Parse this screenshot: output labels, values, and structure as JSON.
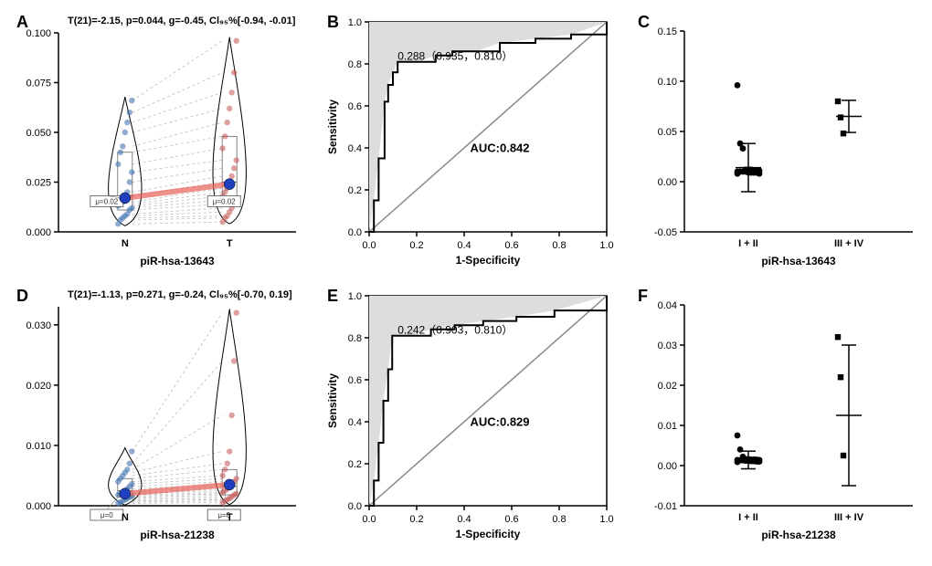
{
  "panelA": {
    "label": "A",
    "title": "T(21)=-2.15, p=0.044, g=-0.45, Cl₉₅%[-0.94, -0.01]",
    "xlabel": "piR-hsa-13643",
    "yticks": [
      0.0,
      0.025,
      0.05,
      0.075,
      0.1
    ],
    "ylim": [
      0,
      0.1
    ],
    "groups": [
      "N",
      "T"
    ],
    "mu": [
      0.02,
      0.02
    ],
    "meanN": 0.017,
    "meanT": 0.024,
    "pointsN": [
      0.004,
      0.006,
      0.007,
      0.008,
      0.009,
      0.011,
      0.012,
      0.013,
      0.014,
      0.015,
      0.018,
      0.02,
      0.025,
      0.03,
      0.034,
      0.04,
      0.043,
      0.05,
      0.055,
      0.06,
      0.066
    ],
    "pointsT": [
      0.005,
      0.007,
      0.008,
      0.01,
      0.012,
      0.014,
      0.016,
      0.018,
      0.02,
      0.022,
      0.025,
      0.028,
      0.032,
      0.036,
      0.042,
      0.048,
      0.055,
      0.062,
      0.07,
      0.08,
      0.096
    ]
  },
  "panelB": {
    "label": "B",
    "xlabel": "1-Specificity",
    "ylabel": "Sensitivity",
    "ticks": [
      0.0,
      0.2,
      0.4,
      0.6,
      0.8,
      1.0
    ],
    "auc": "AUC:0.842",
    "optimal": "0.288（0.935，0.810）",
    "roc": [
      [
        0,
        0
      ],
      [
        0.02,
        0.15
      ],
      [
        0.04,
        0.35
      ],
      [
        0.065,
        0.62
      ],
      [
        0.08,
        0.7
      ],
      [
        0.1,
        0.76
      ],
      [
        0.12,
        0.81
      ],
      [
        0.2,
        0.81
      ],
      [
        0.28,
        0.84
      ],
      [
        0.35,
        0.86
      ],
      [
        0.45,
        0.86
      ],
      [
        0.55,
        0.9
      ],
      [
        0.7,
        0.92
      ],
      [
        0.85,
        0.94
      ],
      [
        1.0,
        1.0
      ]
    ]
  },
  "panelC": {
    "label": "C",
    "xlabel": "piR-hsa-13643",
    "groups": [
      "I + II",
      "III + IV"
    ],
    "yticks": [
      -0.05,
      0.0,
      0.05,
      0.1,
      0.15
    ],
    "ylim": [
      -0.05,
      0.15
    ],
    "g1": {
      "mean": 0.014,
      "err": 0.024,
      "pts": [
        0.096,
        0.038,
        0.033,
        0.012,
        0.012,
        0.012,
        0.011,
        0.011,
        0.011,
        0.01,
        0.01,
        0.01,
        0.01,
        0.009,
        0.009,
        0.009,
        0.009,
        0.008,
        0.008
      ]
    },
    "g2": {
      "mean": 0.065,
      "err": 0.016,
      "pts": [
        0.08,
        0.064,
        0.048
      ],
      "marker": "square"
    }
  },
  "panelD": {
    "label": "D",
    "title": "T(21)=-1.13, p=0.271, g=-0.24, Cl₉₅%[-0.70, 0.19]",
    "xlabel": "piR-hsa-21238",
    "yticks": [
      0.0,
      0.01,
      0.02,
      0.03
    ],
    "ylim": [
      0,
      0.033
    ],
    "groups": [
      "N",
      "T"
    ],
    "mu": [
      0,
      0
    ],
    "meanN": 0.002,
    "meanT": 0.0035,
    "pointsN": [
      0.0004,
      0.0006,
      0.0008,
      0.001,
      0.0012,
      0.0014,
      0.0016,
      0.0018,
      0.002,
      0.0022,
      0.0025,
      0.0028,
      0.0032,
      0.0036,
      0.004,
      0.0045,
      0.005,
      0.0055,
      0.006,
      0.007,
      0.009
    ],
    "pointsT": [
      0.0005,
      0.0008,
      0.001,
      0.0012,
      0.0015,
      0.0018,
      0.002,
      0.0022,
      0.0025,
      0.0028,
      0.0032,
      0.0036,
      0.004,
      0.0045,
      0.005,
      0.006,
      0.007,
      0.009,
      0.015,
      0.024,
      0.032
    ]
  },
  "panelE": {
    "label": "E",
    "xlabel": "1-Specificity",
    "ylabel": "Sensitivity",
    "ticks": [
      0.0,
      0.2,
      0.4,
      0.6,
      0.8,
      1.0
    ],
    "auc": "AUC:0.829",
    "optimal": "0.242（0.903，0.810）",
    "roc": [
      [
        0,
        0
      ],
      [
        0.02,
        0.12
      ],
      [
        0.04,
        0.3
      ],
      [
        0.06,
        0.5
      ],
      [
        0.08,
        0.65
      ],
      [
        0.097,
        0.81
      ],
      [
        0.18,
        0.81
      ],
      [
        0.26,
        0.84
      ],
      [
        0.36,
        0.86
      ],
      [
        0.48,
        0.88
      ],
      [
        0.62,
        0.9
      ],
      [
        0.78,
        0.93
      ],
      [
        1.0,
        1.0
      ]
    ]
  },
  "panelF": {
    "label": "F",
    "xlabel": "piR-hsa-21238",
    "groups": [
      "I + II",
      "III + IV"
    ],
    "yticks": [
      -0.01,
      0.0,
      0.01,
      0.02,
      0.03,
      0.04
    ],
    "ylim": [
      -0.01,
      0.04
    ],
    "g1": {
      "mean": 0.0014,
      "err": 0.0022,
      "pts": [
        0.0075,
        0.004,
        0.0022,
        0.0016,
        0.0016,
        0.0015,
        0.0015,
        0.0015,
        0.0014,
        0.0014,
        0.0013,
        0.0013,
        0.0012,
        0.0012,
        0.0011,
        0.0011,
        0.001,
        0.001,
        0.0009
      ]
    },
    "g2": {
      "mean": 0.0125,
      "err": 0.0175,
      "pts": [
        0.032,
        0.022,
        0.0025
      ],
      "marker": "square"
    }
  }
}
